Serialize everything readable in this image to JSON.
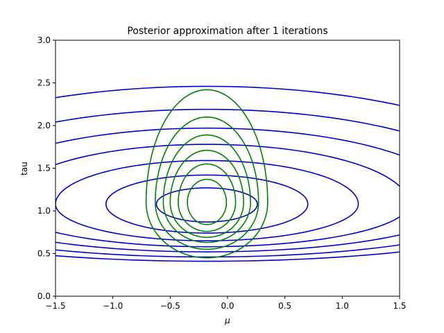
{
  "chart_data": {
    "type": "contour",
    "title": "Posterior approximation after 1 iterations",
    "xlabel": "μ",
    "ylabel": "tau",
    "xlim": [
      -1.5,
      1.5
    ],
    "ylim": [
      0.0,
      3.0
    ],
    "x_ticks": [
      "−1.5",
      "−1.0",
      "−0.5",
      "0.0",
      "0.5",
      "1.0",
      "1.5"
    ],
    "y_ticks": [
      "0.0",
      "0.5",
      "1.0",
      "1.5",
      "2.0",
      "2.5",
      "3.0"
    ],
    "grid": false,
    "legend": "none",
    "series": [
      {
        "color": "#0000cc",
        "center": {
          "mu": -0.18,
          "tau": 1.08
        },
        "contours": [
          {
            "mu_halfwidth": 0.44,
            "tau_lower": 0.87,
            "tau_upper": 1.27
          },
          {
            "mu_halfwidth": 0.88,
            "tau_lower": 0.74,
            "tau_upper": 1.42
          },
          {
            "mu_halfwidth": 1.32,
            "tau_lower": 0.65,
            "tau_upper": 1.59
          },
          {
            "mu_halfwidth": 1.76,
            "tau_lower": 0.58,
            "tau_upper": 1.78
          },
          {
            "mu_halfwidth": 2.2,
            "tau_lower": 0.52,
            "tau_upper": 1.97
          },
          {
            "mu_halfwidth": 2.64,
            "tau_lower": 0.46,
            "tau_upper": 2.19
          },
          {
            "mu_halfwidth": 3.08,
            "tau_lower": 0.41,
            "tau_upper": 2.46
          }
        ]
      },
      {
        "color": "#008000",
        "center": {
          "mu": -0.18,
          "tau": 1.1
        },
        "contours": [
          {
            "mu_halfwidth": 0.17,
            "tau_lower": 0.84,
            "tau_upper": 1.37
          },
          {
            "mu_halfwidth": 0.25,
            "tau_lower": 0.76,
            "tau_upper": 1.55
          },
          {
            "mu_halfwidth": 0.32,
            "tau_lower": 0.69,
            "tau_upper": 1.71
          },
          {
            "mu_halfwidth": 0.38,
            "tau_lower": 0.63,
            "tau_upper": 1.89
          },
          {
            "mu_halfwidth": 0.45,
            "tau_lower": 0.55,
            "tau_upper": 2.1
          },
          {
            "mu_halfwidth": 0.53,
            "tau_lower": 0.45,
            "tau_upper": 2.42
          }
        ]
      }
    ]
  }
}
